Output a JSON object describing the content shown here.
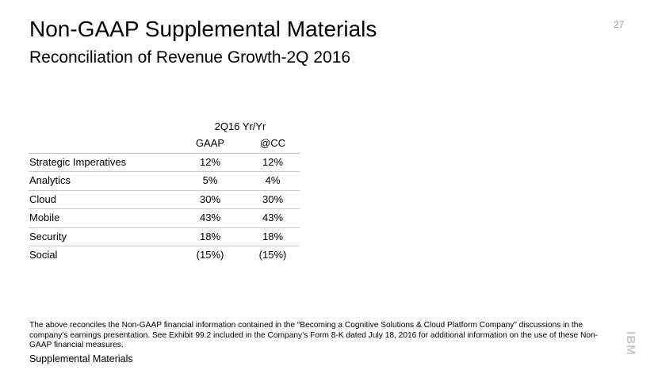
{
  "header": {
    "title": "Non-GAAP Supplemental Materials",
    "subtitle": "Reconciliation of Revenue Growth-2Q 2016",
    "page_number": "27"
  },
  "table": {
    "group_header": "2Q16 Yr/Yr",
    "columns": [
      "",
      "GAAP",
      "@CC"
    ],
    "rows": [
      [
        "Strategic Imperatives",
        "12%",
        "12%"
      ],
      [
        "Analytics",
        "5%",
        "4%"
      ],
      [
        "Cloud",
        "30%",
        "30%"
      ],
      [
        "Mobile",
        "43%",
        "43%"
      ],
      [
        "Security",
        "18%",
        "18%"
      ],
      [
        "Social",
        "(15%)",
        "(15%)"
      ]
    ]
  },
  "footnote": "The above reconciles the Non-GAAP financial information contained in the “Becoming a Cognitive Solutions & Cloud Platform Company” discussions in the company’s earnings presentation. See Exhibit 99.2 included in the Company’s Form 8-K dated July 18, 2016  for additional information on the use of these Non-GAAP financial measures.",
  "footer": {
    "section": "Supplemental Materials",
    "logo": "IBM"
  }
}
